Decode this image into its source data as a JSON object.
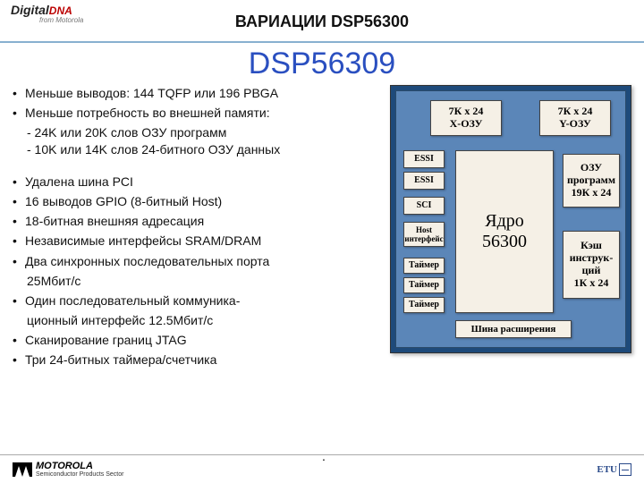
{
  "header": {
    "logo_main": "Digital",
    "logo_accent": "DNA",
    "logo_sub": "from Motorola",
    "title": "ВАРИАЦИИ DSP56300"
  },
  "main_title": "DSP56309",
  "bullets": {
    "b1": "Меньше выводов: 144 TQFP или 196 PBGA",
    "b2": "Меньше потребность во внешней памяти:",
    "b2s1": "- 24K или 20K слов ОЗУ программ",
    "b2s2": "- 10K или 14K слов 24-битного ОЗУ данных",
    "b3": "Удалена шина PCI",
    "b4": "16 выводов GPIO (8-битный Host)",
    "b5": "18-битная внешняя адресация",
    "b6": "Независимые интерфейсы SRAM/DRAM",
    "b7": "Два синхронных последовательных порта",
    "b7c": "25Мбит/с",
    "b8": "Один последовательный коммуника-",
    "b8c": "ционный интерфейс 12.5Мбит/с",
    "b9": "Сканирование границ JTAG",
    "b10": "Три 24-битных таймера/счетчика"
  },
  "diagram": {
    "outer_bg": "#1e4a7a",
    "inner_bg": "#5b86b8",
    "block_bg": "#f5f0e6",
    "x_ram": "7К x 24\nX-ОЗУ",
    "y_ram": "7К x 24\nY-ОЗУ",
    "essi1": "ESSI",
    "essi2": "ESSI",
    "sci": "SCI",
    "host": "Host\nинтерфейс",
    "timer1": "Таймер",
    "timer2": "Таймер",
    "timer3": "Таймер",
    "core": "Ядро\n56300",
    "prog_ram": "ОЗУ\nпрограмм\n19К x 24",
    "cache": "Кэш\nинструк-\nций\n1К x 24",
    "bus": "Шина расширения"
  },
  "footer": {
    "motorola": "MOTOROLA",
    "sector": "Semiconductor Products Sector",
    "etu": "ETU"
  }
}
